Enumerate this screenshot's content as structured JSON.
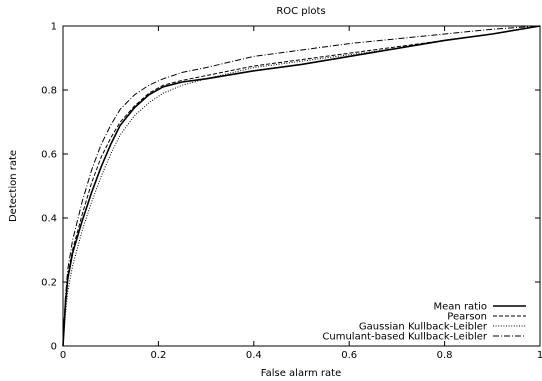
{
  "chart_data": {
    "type": "line",
    "title": "ROC plots",
    "xlabel": "False alarm rate",
    "ylabel": "Detection rate",
    "xlim": [
      0,
      1
    ],
    "ylim": [
      0,
      1
    ],
    "xticks": [
      "0",
      "0.2",
      "0.4",
      "0.6",
      "0.8",
      "1"
    ],
    "yticks": [
      "0",
      "0.2",
      "0.4",
      "0.6",
      "0.8",
      "1"
    ],
    "grid": false,
    "legend_position": "bottom-right",
    "series": [
      {
        "name": "Mean ratio",
        "dash": "solid",
        "points": [
          [
            0,
            0
          ],
          [
            0.005,
            0.13
          ],
          [
            0.01,
            0.21
          ],
          [
            0.02,
            0.29
          ],
          [
            0.04,
            0.39
          ],
          [
            0.06,
            0.48
          ],
          [
            0.08,
            0.56
          ],
          [
            0.1,
            0.63
          ],
          [
            0.12,
            0.69
          ],
          [
            0.15,
            0.745
          ],
          [
            0.18,
            0.785
          ],
          [
            0.21,
            0.81
          ],
          [
            0.25,
            0.825
          ],
          [
            0.3,
            0.835
          ],
          [
            0.4,
            0.86
          ],
          [
            0.5,
            0.88
          ],
          [
            0.6,
            0.905
          ],
          [
            0.7,
            0.93
          ],
          [
            0.8,
            0.955
          ],
          [
            0.9,
            0.975
          ],
          [
            1.0,
            1.0
          ]
        ]
      },
      {
        "name": "Pearson",
        "dash": "dashed",
        "points": [
          [
            0,
            0
          ],
          [
            0.005,
            0.14
          ],
          [
            0.01,
            0.22
          ],
          [
            0.02,
            0.3
          ],
          [
            0.04,
            0.41
          ],
          [
            0.06,
            0.51
          ],
          [
            0.08,
            0.59
          ],
          [
            0.1,
            0.65
          ],
          [
            0.12,
            0.7
          ],
          [
            0.15,
            0.75
          ],
          [
            0.18,
            0.79
          ],
          [
            0.21,
            0.815
          ],
          [
            0.25,
            0.83
          ],
          [
            0.3,
            0.845
          ],
          [
            0.4,
            0.875
          ],
          [
            0.5,
            0.895
          ],
          [
            0.6,
            0.915
          ],
          [
            0.7,
            0.935
          ],
          [
            0.8,
            0.955
          ],
          [
            0.9,
            0.975
          ],
          [
            1.0,
            1.0
          ]
        ]
      },
      {
        "name": "Gaussian Kullback-Leibler",
        "dash": "dotted",
        "points": [
          [
            0,
            0
          ],
          [
            0.005,
            0.1
          ],
          [
            0.01,
            0.17
          ],
          [
            0.02,
            0.25
          ],
          [
            0.04,
            0.36
          ],
          [
            0.06,
            0.45
          ],
          [
            0.08,
            0.53
          ],
          [
            0.1,
            0.6
          ],
          [
            0.12,
            0.66
          ],
          [
            0.15,
            0.72
          ],
          [
            0.18,
            0.76
          ],
          [
            0.21,
            0.79
          ],
          [
            0.25,
            0.815
          ],
          [
            0.3,
            0.835
          ],
          [
            0.4,
            0.87
          ],
          [
            0.5,
            0.89
          ],
          [
            0.6,
            0.91
          ],
          [
            0.7,
            0.93
          ],
          [
            0.8,
            0.955
          ],
          [
            0.9,
            0.975
          ],
          [
            1.0,
            1.0
          ]
        ]
      },
      {
        "name": "Cumulant-based Kullback-Leibler",
        "dash": "dashdot",
        "points": [
          [
            0,
            0
          ],
          [
            0.005,
            0.15
          ],
          [
            0.01,
            0.24
          ],
          [
            0.02,
            0.33
          ],
          [
            0.04,
            0.45
          ],
          [
            0.06,
            0.55
          ],
          [
            0.08,
            0.63
          ],
          [
            0.1,
            0.69
          ],
          [
            0.12,
            0.74
          ],
          [
            0.15,
            0.785
          ],
          [
            0.18,
            0.815
          ],
          [
            0.21,
            0.835
          ],
          [
            0.25,
            0.855
          ],
          [
            0.3,
            0.87
          ],
          [
            0.4,
            0.905
          ],
          [
            0.5,
            0.925
          ],
          [
            0.6,
            0.945
          ],
          [
            0.7,
            0.96
          ],
          [
            0.8,
            0.975
          ],
          [
            0.9,
            0.99
          ],
          [
            1.0,
            1.0
          ]
        ]
      }
    ]
  }
}
